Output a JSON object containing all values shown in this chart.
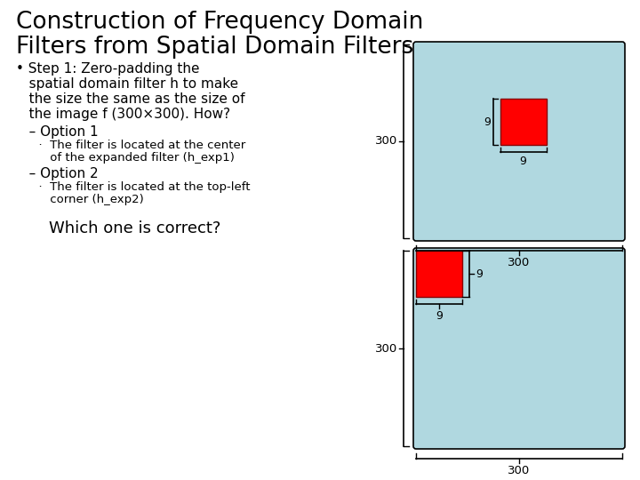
{
  "title_line1": "Construction of Frequency Domain",
  "title_line2": "Filters from Spatial Domain Filters",
  "title_fontsize": 19,
  "body_fontsize": 11,
  "small_fontsize": 9.5,
  "which_fontsize": 13,
  "bg_color": "#ffffff",
  "light_blue": "#b0d8e0",
  "red_color": "#ff0000",
  "text_color": "#000000",
  "which_text": "Which one is correct?"
}
